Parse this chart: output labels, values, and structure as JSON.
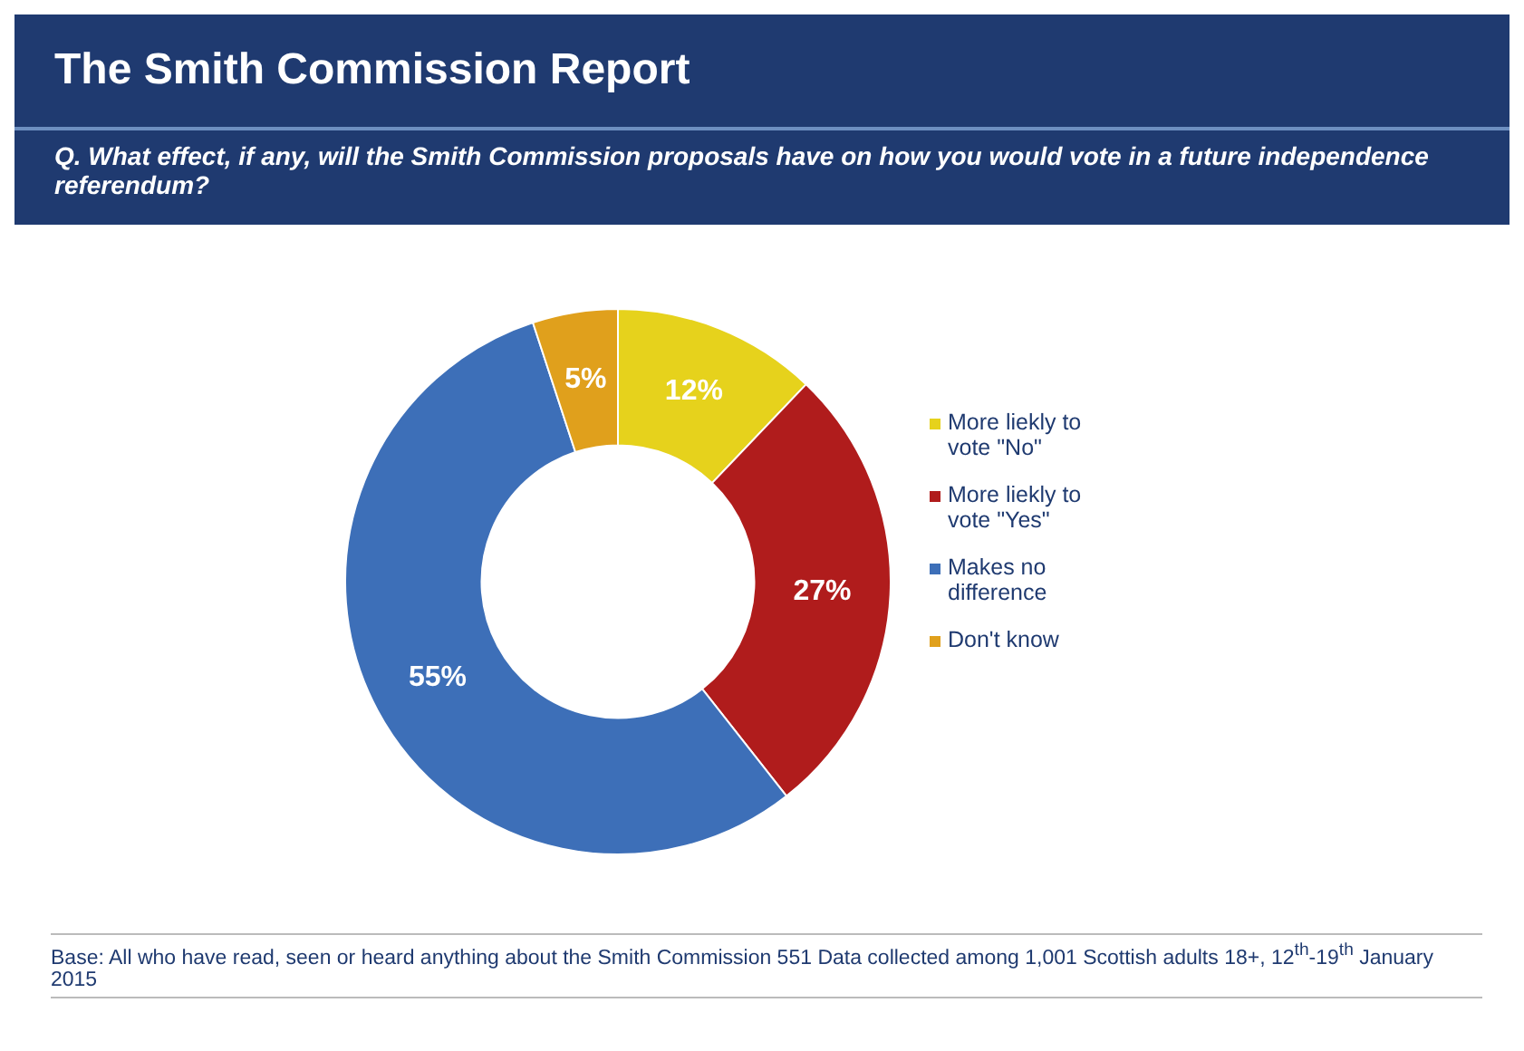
{
  "chart_data": {
    "type": "donut",
    "title": "The Smith Commission Report",
    "subtitle": "Q. What effect, if any, will the Smith Commission proposals have on how you would vote in a future independence referendum?",
    "categories": [
      "More liekly to vote \"No\"",
      "More liekly to vote \"Yes\"",
      "Makes no difference",
      "Don't know"
    ],
    "values": [
      12,
      27,
      55,
      5
    ],
    "colors": [
      "#e6d21c",
      "#b01c1c",
      "#3d6fb8",
      "#e0a01c"
    ],
    "value_labels": [
      "12%",
      "27%",
      "55%",
      "5%"
    ],
    "legend": "right",
    "annotations": [
      "Base: All who have read, seen or heard anything about the Smith Commission 551 Data collected among 1,001 Scottish adults 18+, 12$^{th}$-19$^{th}$ January 2015"
    ]
  }
}
